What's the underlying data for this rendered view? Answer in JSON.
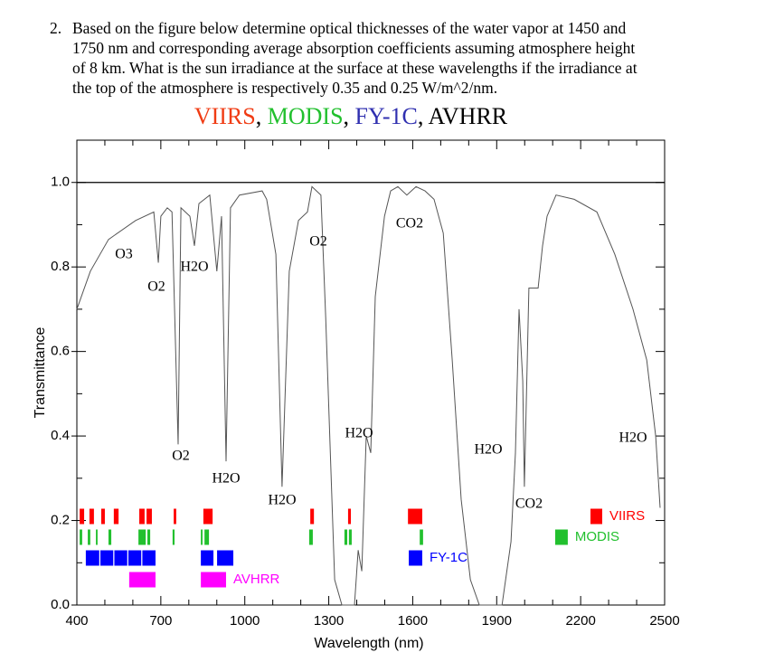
{
  "question": {
    "number": "2.",
    "lines": [
      "Based on the figure below determine optical thicknesses of the water vapor at 1450 and",
      "1750 nm and corresponding average absorption coefficients assuming atmosphere height",
      "of 8 km. What is the sun irradiance at the surface at these wavelengths if the irradiance at",
      "the top of the atmosphere is respectively 0.35 and 0.25 W/m^2/nm."
    ]
  },
  "chart_data": {
    "type": "line",
    "title_separator": ",",
    "x_label": "Wavelength (nm)",
    "y_label": "Transmittance",
    "xlim": [
      400,
      2500
    ],
    "ylim": [
      0,
      1.1
    ],
    "xticks": [
      400,
      700,
      1000,
      1300,
      1600,
      1900,
      2200,
      2500
    ],
    "xminor_ticks": [
      500,
      600,
      800,
      900,
      1100,
      1200,
      1400,
      1500,
      1700,
      1800,
      2000,
      2100,
      2300,
      2400
    ],
    "yticks": [
      {
        "value": 0,
        "label": "0.0"
      },
      0.2,
      0.4,
      0.6,
      0.8,
      {
        "value": 1,
        "label": "1.0"
      }
    ],
    "yminor_ticks": [
      0.1,
      0.3,
      0.5,
      0.7,
      0.9
    ],
    "reference_line": 1.0,
    "color": "#555555",
    "x": [
      400,
      448,
      513,
      610,
      675,
      691,
      700,
      723,
      740,
      762,
      772,
      804,
      820,
      836,
      875,
      900,
      917,
      933,
      949,
      981,
      1062,
      1078,
      1111,
      1133,
      1159,
      1192,
      1224,
      1240,
      1256,
      1272,
      1289,
      1321,
      1347,
      1392,
      1405,
      1418,
      1434,
      1450,
      1466,
      1499,
      1521,
      1547,
      1579,
      1612,
      1644,
      1676,
      1709,
      1741,
      1773,
      1806,
      1838,
      1919,
      1951,
      1967,
      1980,
      1993,
      1999,
      2015,
      2048,
      2064,
      2080,
      2112,
      2177,
      2258,
      2322,
      2387,
      2436,
      2468,
      2484
    ],
    "values": [
      0.7,
      0.79,
      0.865,
      0.91,
      0.93,
      0.81,
      0.92,
      0.94,
      0.93,
      0.38,
      0.94,
      0.92,
      0.85,
      0.95,
      0.97,
      0.79,
      0.92,
      0.34,
      0.94,
      0.97,
      0.98,
      0.96,
      0.83,
      0.28,
      0.79,
      0.91,
      0.93,
      0.99,
      0.98,
      0.97,
      0.68,
      0.06,
      0,
      0,
      0.13,
      0.08,
      0.4,
      0.36,
      0.73,
      0.92,
      0.98,
      0.99,
      0.97,
      0.99,
      0.98,
      0.96,
      0.88,
      0.58,
      0.25,
      0.06,
      0,
      0,
      0.15,
      0.36,
      0.7,
      0.53,
      0.28,
      0.75,
      0.75,
      0.85,
      0.92,
      0.97,
      0.96,
      0.93,
      0.83,
      0.7,
      0.58,
      0.4,
      0.23
    ],
    "annotations": [
      "O3",
      "O2",
      "H2O",
      "O2",
      "H2O",
      "H2O",
      "O2",
      "CO2",
      "H2O",
      "H2O",
      "CO2",
      "H2O"
    ],
    "sensors": [
      {
        "name": "VIIRS",
        "color": "#ff0000",
        "title_color": "#f03c14",
        "bands": [
          [
            410,
            426
          ],
          [
            445,
            461
          ],
          [
            487,
            500
          ],
          [
            532,
            549
          ],
          [
            623,
            642
          ],
          [
            649,
            668
          ],
          [
            746,
            755
          ],
          [
            852,
            885
          ],
          [
            1234,
            1247
          ],
          [
            1369,
            1379
          ],
          [
            1583,
            1634
          ],
          [
            2235,
            2277
          ]
        ]
      },
      {
        "name": "MODIS",
        "color": "#22c02e",
        "title_color": "#22c02e",
        "bands": [
          [
            410,
            419
          ],
          [
            439,
            448
          ],
          [
            468,
            474
          ],
          [
            513,
            523
          ],
          [
            620,
            646
          ],
          [
            652,
            662
          ],
          [
            742,
            749
          ],
          [
            843,
            849
          ],
          [
            856,
            872
          ],
          [
            1230,
            1243
          ],
          [
            1356,
            1366
          ],
          [
            1372,
            1382
          ],
          [
            1625,
            1637
          ],
          [
            2109,
            2154
          ]
        ]
      },
      {
        "name": "FY-1C",
        "color": "#0000ff",
        "title_color": "#3030b0",
        "bands": [
          [
            432,
            480
          ],
          [
            484,
            530
          ],
          [
            534,
            580
          ],
          [
            584,
            630
          ],
          [
            634,
            681
          ],
          [
            843,
            888
          ],
          [
            901,
            959
          ],
          [
            1586,
            1634
          ]
        ]
      },
      {
        "name": "AVHRR",
        "color": "#ff00ff",
        "title_color": "#000000",
        "bands": [
          [
            587,
            681
          ],
          [
            843,
            933
          ]
        ]
      }
    ]
  }
}
